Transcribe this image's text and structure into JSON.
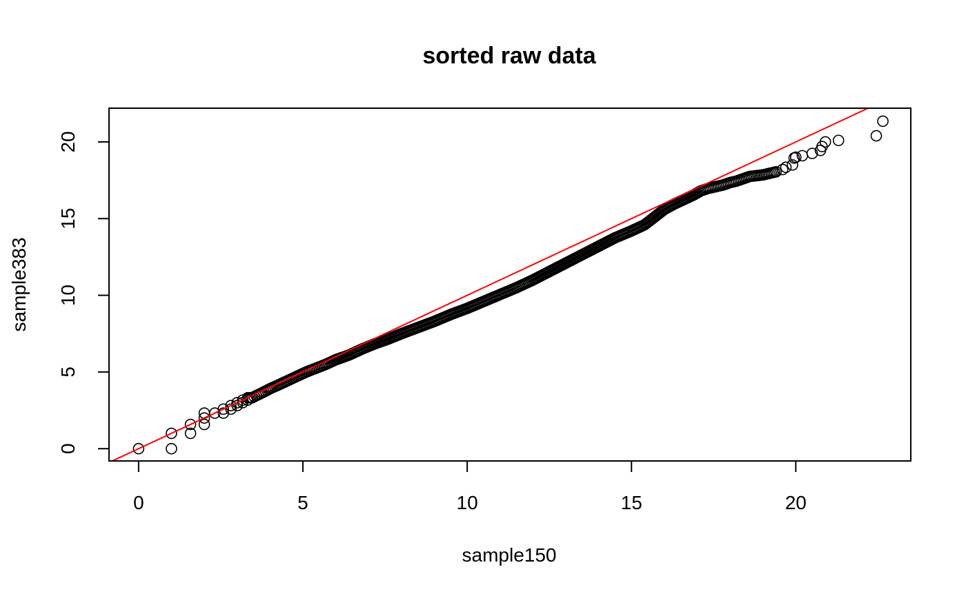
{
  "chart_data": {
    "type": "scatter",
    "title": "sorted raw data",
    "xlabel": "sample150",
    "ylabel": "sample383",
    "xlim": [
      -0.9,
      23.5
    ],
    "ylim": [
      -0.8,
      22.2
    ],
    "xticks": [
      0,
      5,
      10,
      15,
      20
    ],
    "yticks": [
      0,
      5,
      10,
      15,
      20
    ],
    "grid": false,
    "marker": "open-circle",
    "point_color": "#000000",
    "reference_line": {
      "intercept": 0,
      "slope": 1,
      "color": "#ff0000"
    },
    "series": [
      {
        "points": [
          [
            0,
            0
          ],
          [
            1,
            0
          ],
          [
            1,
            1
          ],
          [
            1.58,
            1
          ],
          [
            1.58,
            1.58
          ],
          [
            2,
            1.58
          ],
          [
            2,
            2
          ],
          [
            2,
            2.32
          ],
          [
            2.32,
            2.32
          ],
          [
            2.58,
            2.32
          ],
          [
            2.58,
            2.58
          ],
          [
            2.81,
            2.58
          ],
          [
            2.81,
            2.81
          ],
          [
            3,
            2.81
          ],
          [
            3,
            3
          ],
          [
            3.17,
            3
          ],
          [
            3.17,
            3.17
          ],
          [
            3.32,
            3.17
          ],
          [
            3.32,
            3.32
          ],
          [
            3.46,
            3.32
          ],
          [
            3.58,
            3.46
          ],
          [
            3.7,
            3.58
          ],
          [
            3.81,
            3.7
          ],
          [
            3.91,
            3.81
          ],
          [
            4,
            3.91
          ],
          [
            4.09,
            4.0
          ],
          [
            4.2,
            4.1
          ],
          [
            4.35,
            4.25
          ],
          [
            4.5,
            4.4
          ],
          [
            4.7,
            4.6
          ],
          [
            4.9,
            4.8
          ],
          [
            5.1,
            5.0
          ],
          [
            5.4,
            5.25
          ],
          [
            5.7,
            5.5
          ],
          [
            6.0,
            5.8
          ],
          [
            6.4,
            6.1
          ],
          [
            6.8,
            6.5
          ],
          [
            7.2,
            6.85
          ],
          [
            7.6,
            7.15
          ],
          [
            8.0,
            7.5
          ],
          [
            8.5,
            7.9
          ],
          [
            9.0,
            8.3
          ],
          [
            9.5,
            8.75
          ],
          [
            10.0,
            9.15
          ],
          [
            10.5,
            9.6
          ],
          [
            11.0,
            10.05
          ],
          [
            11.5,
            10.5
          ],
          [
            12.0,
            11.0
          ],
          [
            12.5,
            11.55
          ],
          [
            13.0,
            12.1
          ],
          [
            13.5,
            12.65
          ],
          [
            14.0,
            13.2
          ],
          [
            14.5,
            13.75
          ],
          [
            15.0,
            14.2
          ],
          [
            15.4,
            14.6
          ],
          [
            15.7,
            15.1
          ],
          [
            16.0,
            15.6
          ],
          [
            16.3,
            15.95
          ],
          [
            16.6,
            16.25
          ],
          [
            16.9,
            16.55
          ],
          [
            17.1,
            16.8
          ],
          [
            17.3,
            16.95
          ],
          [
            17.6,
            17.1
          ],
          [
            17.8,
            17.2
          ],
          [
            18.0,
            17.35
          ],
          [
            18.2,
            17.45
          ],
          [
            18.4,
            17.6
          ],
          [
            18.6,
            17.75
          ],
          [
            18.8,
            17.8
          ],
          [
            19.0,
            17.85
          ],
          [
            19.2,
            17.95
          ],
          [
            19.4,
            18.05
          ],
          [
            19.6,
            18.2
          ],
          [
            19.7,
            18.35
          ],
          [
            19.9,
            18.5
          ],
          [
            19.95,
            18.95
          ],
          [
            20.0,
            19.0
          ],
          [
            20.2,
            19.1
          ],
          [
            20.5,
            19.25
          ],
          [
            20.75,
            19.45
          ],
          [
            20.8,
            19.7
          ],
          [
            20.9,
            20.0
          ],
          [
            21.3,
            20.1
          ],
          [
            22.45,
            20.4
          ],
          [
            22.65,
            21.35
          ]
        ]
      }
    ]
  }
}
